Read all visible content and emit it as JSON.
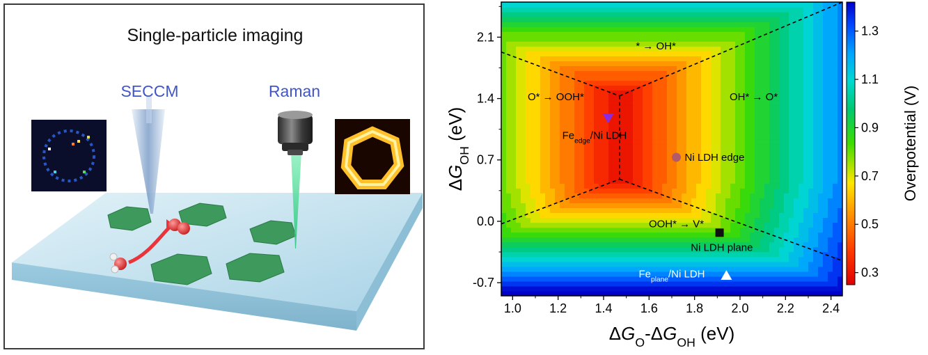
{
  "illustration": {
    "title": "Single-particle imaging",
    "seccm_label": "SECCM",
    "raman_label": "Raman",
    "label_color": "#3f55c8"
  },
  "chart_data": {
    "type": "heatmap",
    "x_range": [
      0.95,
      2.45
    ],
    "y_range": [
      -0.85,
      2.5
    ],
    "x_ticks": [
      1.0,
      1.2,
      1.4,
      1.6,
      1.8,
      2.0,
      2.2,
      2.4
    ],
    "x_tick_labels": [
      "1.0",
      "1.2",
      "1.4",
      "1.6",
      "1.8",
      "2.0",
      "2.2",
      "2.4"
    ],
    "y_ticks": [
      -0.7,
      0.0,
      0.7,
      1.4,
      2.1
    ],
    "y_tick_labels": [
      "-0.7",
      "0.0",
      "0.7",
      "1.4",
      "2.1"
    ],
    "xlabel": {
      "parts": [
        [
          "Δ",
          ""
        ],
        [
          "G",
          "italic"
        ],
        [
          "O",
          "sub"
        ],
        [
          "-Δ",
          ""
        ],
        [
          "G",
          "italic"
        ],
        [
          "OH",
          "sub"
        ],
        [
          " (eV)",
          ""
        ]
      ]
    },
    "ylabel": {
      "parts": [
        [
          "Δ",
          ""
        ],
        [
          "G",
          "italic"
        ],
        [
          "OH",
          "sub"
        ],
        [
          " (eV)",
          ""
        ]
      ]
    },
    "colorbar": {
      "label": "Overpotential (V)",
      "range": [
        0.25,
        1.42
      ],
      "ticks": [
        0.3,
        0.5,
        0.7,
        0.9,
        1.1,
        1.3
      ],
      "tick_labels": [
        "0.3",
        "0.5",
        "0.7",
        "0.9",
        "1.1",
        "1.3"
      ]
    },
    "eta_min": 0.27,
    "center": {
      "x": 1.47,
      "y": 1.43,
      "y_low": 0.48
    },
    "boundaries": [
      [
        [
          0.95,
          1.93
        ],
        [
          1.47,
          1.43
        ]
      ],
      [
        [
          1.47,
          1.43
        ],
        [
          2.45,
          2.5
        ]
      ],
      [
        [
          1.47,
          1.43
        ],
        [
          1.47,
          0.48
        ]
      ],
      [
        [
          0.95,
          -0.03
        ],
        [
          1.47,
          0.48
        ]
      ],
      [
        [
          1.47,
          0.48
        ],
        [
          2.45,
          -0.45
        ]
      ]
    ],
    "region_labels": [
      {
        "text": "* → OH*",
        "x": 1.63,
        "y": 2.0
      },
      {
        "text": "O* → OOH*",
        "x": 1.19,
        "y": 1.42
      },
      {
        "text": "OH* → O*",
        "x": 2.06,
        "y": 1.42
      },
      {
        "text": "OOH* → V*",
        "x": 1.72,
        "y": -0.03
      }
    ],
    "points": [
      {
        "name": "Fe_edge/Ni LDH",
        "x": 1.42,
        "y": 1.18,
        "marker": "triangle-down",
        "color": "#8a2be2",
        "label": {
          "parts": [
            [
              "Fe",
              ""
            ],
            [
              "edge",
              "sub"
            ],
            [
              "/Ni LDH",
              ""
            ]
          ]
        },
        "label_x": 1.36,
        "label_y": 0.98,
        "label_color": "#000000"
      },
      {
        "name": "Ni LDH edge",
        "x": 1.72,
        "y": 0.73,
        "marker": "circle",
        "color": "#b35a6a",
        "label": {
          "parts": [
            [
              "Ni LDH edge",
              ""
            ]
          ]
        },
        "label_x": 1.89,
        "label_y": 0.73,
        "label_color": "#000000"
      },
      {
        "name": "Ni LDH plane",
        "x": 1.91,
        "y": -0.13,
        "marker": "square",
        "color": "#111111",
        "label": {
          "parts": [
            [
              "Ni LDH plane",
              ""
            ]
          ]
        },
        "label_x": 1.92,
        "label_y": -0.3,
        "label_color": "#000000"
      },
      {
        "name": "Fe_plane/Ni LDH",
        "x": 1.94,
        "y": -0.62,
        "marker": "triangle-up",
        "color": "#ffffff",
        "label": {
          "parts": [
            [
              "Fe",
              ""
            ],
            [
              "plane",
              "sub"
            ],
            [
              "/Ni LDH",
              ""
            ]
          ]
        },
        "label_x": 1.7,
        "label_y": -0.6,
        "label_color": "#ffffff"
      }
    ]
  }
}
